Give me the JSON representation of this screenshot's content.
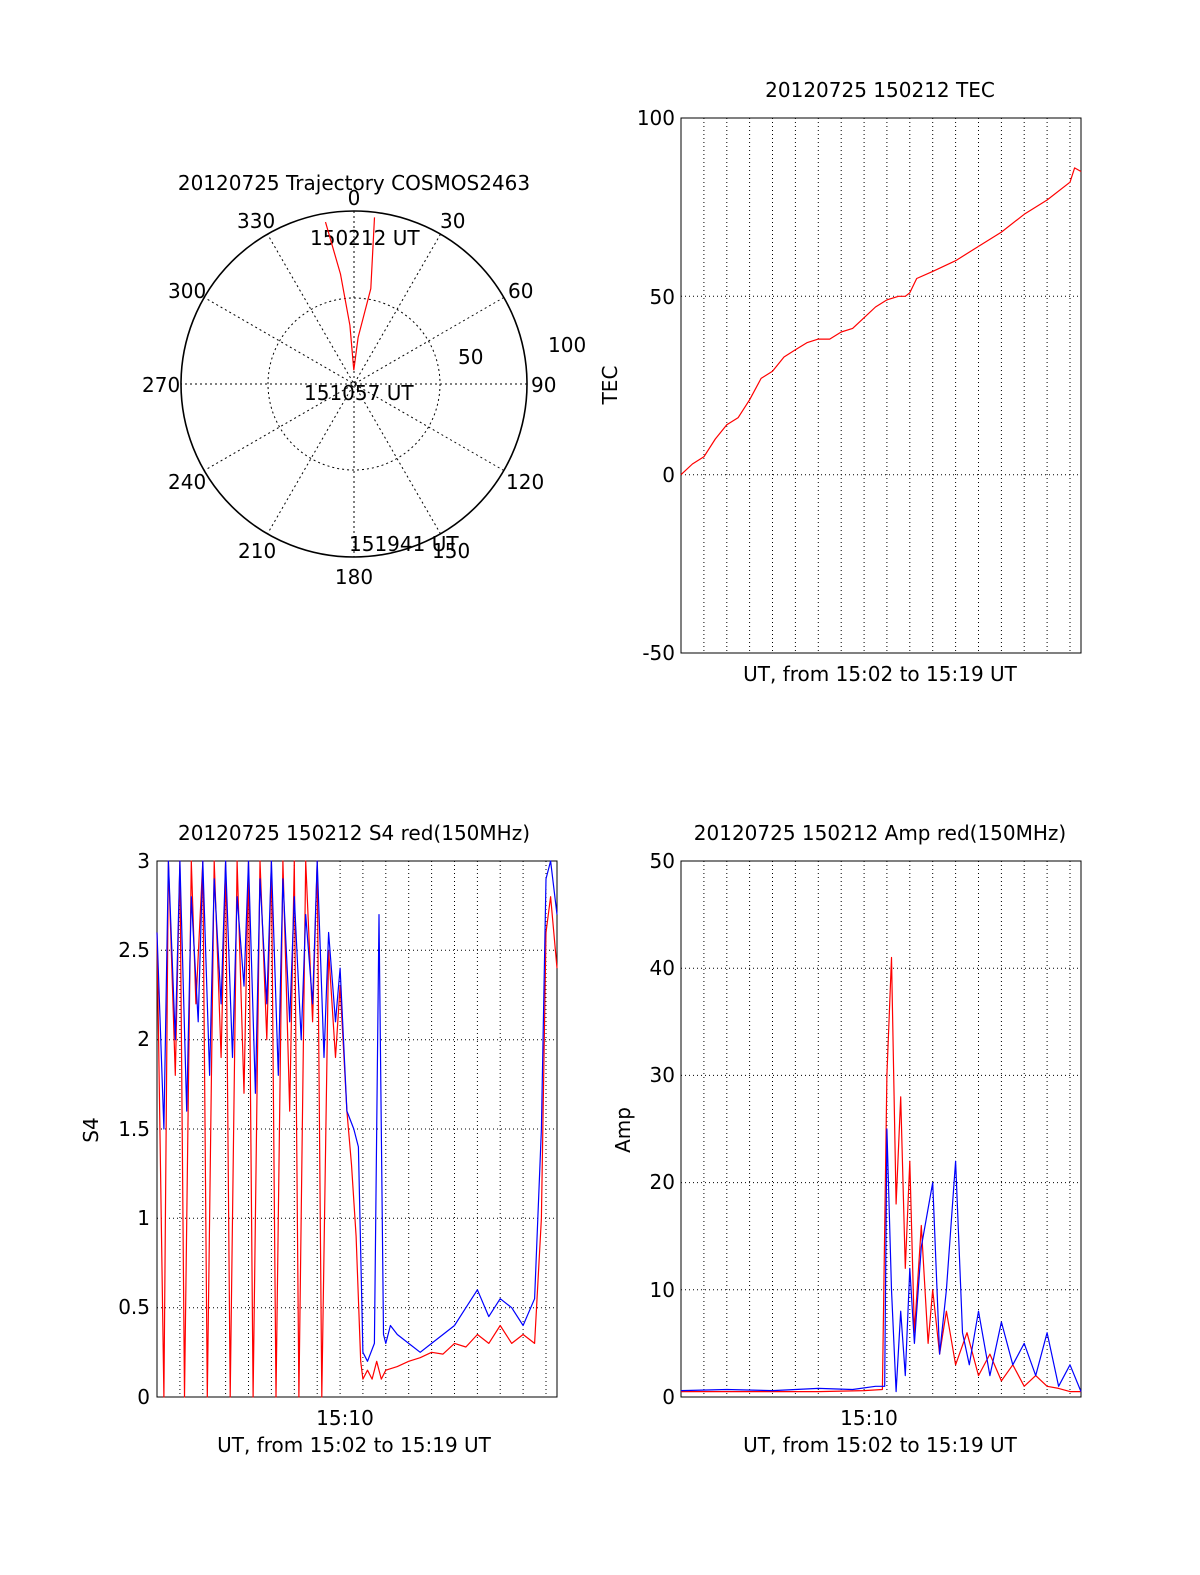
{
  "chart_data": [
    {
      "id": "trajectory",
      "type": "polar",
      "title": "20120725 Trajectory COSMOS2463",
      "azimuth_labels": [
        "0",
        "30",
        "60",
        "90",
        "120",
        "150",
        "180",
        "210",
        "240",
        "270",
        "300",
        "330"
      ],
      "radial_labels": [
        "50",
        "100"
      ],
      "radial_max": 100,
      "grid": true,
      "series": [
        {
          "color": "#ff0000",
          "points": [
            [
              -10,
              95
            ],
            [
              -7,
              64
            ],
            [
              -4,
              34
            ],
            [
              -1,
              8
            ],
            [
              5,
              27
            ],
            [
              10,
              56
            ],
            [
              7,
              97
            ]
          ]
        }
      ],
      "annotations": [
        "150212 UT",
        "151057 UT",
        "151941 UT"
      ]
    },
    {
      "id": "tec",
      "type": "line",
      "title": "20120725 150212 TEC",
      "xlabel": "UT, from 15:02 to 15:19 UT",
      "ylabel": "TEC",
      "xlim": [
        0,
        17.48
      ],
      "ylim": [
        -50,
        100
      ],
      "yticks": [
        "100",
        "50",
        "0",
        "-50"
      ],
      "grid": true,
      "series": [
        {
          "color": "#ff0000",
          "x": [
            0,
            0.5,
            1.0,
            1.5,
            2.0,
            2.5,
            3.0,
            3.5,
            4.0,
            4.5,
            5.0,
            5.5,
            6.0,
            6.5,
            7.0,
            7.5,
            8.0,
            8.5,
            9.0,
            9.5,
            9.8,
            10.0,
            10.3,
            11.0,
            12.0,
            13.0,
            14.0,
            15.0,
            16.0,
            17.0,
            17.2,
            17.48
          ],
          "y": [
            0,
            3,
            5,
            10,
            14,
            16,
            21,
            27,
            29,
            33,
            35,
            37,
            38,
            38,
            40,
            41,
            44,
            47,
            49,
            50,
            50,
            51,
            55,
            57,
            60,
            64,
            68,
            73,
            77,
            82,
            86,
            85
          ]
        }
      ]
    },
    {
      "id": "s4",
      "type": "line",
      "title": "20120725 150212 S4 red(150MHz)",
      "xlabel": "UT, from 15:02 to 15:19 UT",
      "ylabel": "S4",
      "xlim": [
        0,
        17.48
      ],
      "ylim": [
        0,
        3
      ],
      "xticks": [
        {
          "x": 8.3,
          "label": "15:10"
        }
      ],
      "yticks": [
        "3",
        "2.5",
        "2",
        "1.5",
        "1",
        "0.5",
        "0"
      ],
      "grid": true,
      "series": [
        {
          "color": "#ff0000",
          "x": [
            0,
            0.3,
            0.5,
            0.8,
            1.0,
            1.2,
            1.5,
            1.7,
            2.0,
            2.2,
            2.5,
            2.8,
            3.0,
            3.2,
            3.5,
            3.8,
            4.0,
            4.2,
            4.5,
            4.8,
            5.0,
            5.2,
            5.5,
            5.8,
            6.0,
            6.2,
            6.5,
            6.8,
            7.0,
            7.2,
            7.5,
            7.8,
            8.0,
            8.3,
            8.5,
            8.7,
            8.9,
            9.0,
            9.2,
            9.4,
            9.6,
            9.8,
            10.0,
            10.5,
            11.0,
            11.5,
            12.0,
            12.5,
            13.0,
            13.5,
            14.0,
            14.5,
            15.0,
            15.5,
            16.0,
            16.5,
            16.8,
            17.0,
            17.2,
            17.48
          ],
          "y": [
            2.6,
            0.0,
            3.0,
            1.8,
            3.0,
            0.0,
            3.0,
            2.2,
            3.0,
            0.0,
            3.0,
            1.9,
            3.0,
            0.0,
            3.0,
            1.7,
            3.0,
            0.0,
            3.0,
            2.0,
            3.0,
            0.0,
            3.0,
            1.6,
            3.0,
            0.0,
            3.0,
            2.1,
            3.0,
            0.0,
            2.5,
            1.9,
            2.3,
            1.6,
            1.3,
            0.9,
            0.2,
            0.1,
            0.15,
            0.1,
            0.2,
            0.1,
            0.15,
            0.17,
            0.2,
            0.22,
            0.25,
            0.24,
            0.3,
            0.28,
            0.35,
            0.3,
            0.4,
            0.3,
            0.35,
            0.3,
            1.0,
            2.6,
            2.8,
            2.4
          ]
        },
        {
          "color": "#0000ff",
          "x": [
            0,
            0.3,
            0.5,
            0.8,
            1.0,
            1.3,
            1.5,
            1.8,
            2.0,
            2.3,
            2.5,
            2.8,
            3.0,
            3.3,
            3.5,
            3.8,
            4.0,
            4.3,
            4.5,
            4.8,
            5.0,
            5.3,
            5.5,
            5.8,
            6.0,
            6.3,
            6.5,
            6.8,
            7.0,
            7.3,
            7.5,
            7.8,
            8.0,
            8.3,
            8.6,
            8.8,
            9.0,
            9.2,
            9.5,
            9.7,
            9.9,
            10.0,
            10.2,
            10.5,
            11.0,
            11.5,
            12.0,
            12.5,
            13.0,
            13.5,
            14.0,
            14.5,
            15.0,
            15.5,
            16.0,
            16.5,
            16.8,
            17.0,
            17.2,
            17.48
          ],
          "y": [
            2.6,
            1.5,
            3.0,
            2.0,
            3.0,
            1.6,
            2.8,
            2.1,
            3.0,
            1.8,
            2.9,
            2.2,
            3.0,
            1.9,
            2.8,
            2.3,
            3.0,
            1.7,
            2.9,
            2.2,
            3.0,
            1.8,
            2.9,
            2.1,
            2.8,
            2.0,
            2.7,
            2.2,
            3.0,
            1.9,
            2.6,
            2.1,
            2.4,
            1.6,
            1.5,
            1.4,
            0.25,
            0.2,
            0.3,
            2.7,
            0.35,
            0.3,
            0.4,
            0.35,
            0.3,
            0.25,
            0.3,
            0.35,
            0.4,
            0.5,
            0.6,
            0.45,
            0.55,
            0.5,
            0.4,
            0.55,
            1.5,
            2.9,
            3.0,
            2.7
          ]
        }
      ]
    },
    {
      "id": "amp",
      "type": "line",
      "title": "20120725 150212 Amp red(150MHz)",
      "xlabel": "UT, from 15:02 to 15:19 UT",
      "ylabel": "Amp",
      "xlim": [
        0,
        17.48
      ],
      "ylim": [
        0,
        50
      ],
      "xticks": [
        {
          "x": 8.3,
          "label": "15:10"
        }
      ],
      "yticks": [
        "50",
        "40",
        "30",
        "20",
        "10",
        "0"
      ],
      "grid": true,
      "series": [
        {
          "color": "#ff0000",
          "x": [
            0,
            2.0,
            4.0,
            6.0,
            8.0,
            8.8,
            9.0,
            9.2,
            9.4,
            9.6,
            9.8,
            10.0,
            10.2,
            10.5,
            10.8,
            11.0,
            11.3,
            11.6,
            12.0,
            12.5,
            13.0,
            13.5,
            14.0,
            14.5,
            15.0,
            15.5,
            16.0,
            16.5,
            17.0,
            17.48
          ],
          "y": [
            0.5,
            0.5,
            0.5,
            0.5,
            0.6,
            0.7,
            30,
            41,
            18,
            28,
            12,
            22,
            6,
            16,
            5,
            10,
            4,
            8,
            3,
            6,
            2,
            4,
            1.5,
            3,
            1,
            2,
            1,
            0.8,
            0.5,
            0.5
          ]
        },
        {
          "color": "#0000ff",
          "x": [
            0,
            2.0,
            4.0,
            6.0,
            7.5,
            8.5,
            8.9,
            9.0,
            9.2,
            9.4,
            9.6,
            9.8,
            10.0,
            10.2,
            10.5,
            11.0,
            11.3,
            11.6,
            12.0,
            12.3,
            12.6,
            13.0,
            13.5,
            14.0,
            14.5,
            15.0,
            15.5,
            16.0,
            16.5,
            17.0,
            17.48
          ],
          "y": [
            0.6,
            0.7,
            0.6,
            0.8,
            0.7,
            1.0,
            1.0,
            25,
            10,
            0.5,
            8,
            2,
            12,
            5,
            14,
            20,
            4,
            10,
            22,
            6,
            3,
            8,
            2,
            7,
            3,
            5,
            2,
            6,
            1,
            3,
            0.5
          ]
        }
      ]
    }
  ]
}
